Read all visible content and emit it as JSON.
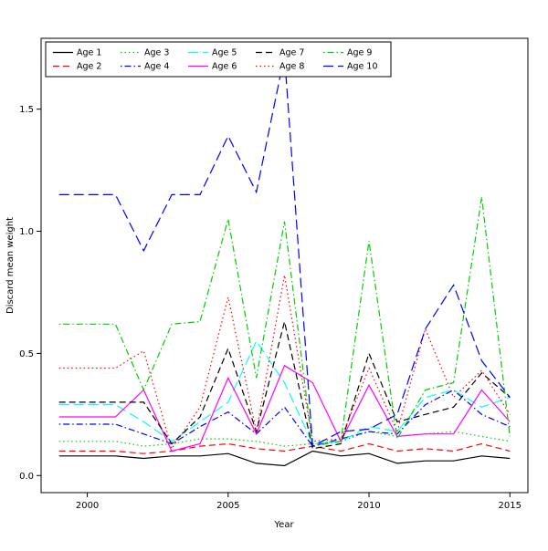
{
  "chart_data": {
    "type": "line",
    "title": "",
    "xlabel": "Year",
    "ylabel": "Discard mean weight",
    "x": [
      1999,
      2000,
      2001,
      2002,
      2003,
      2004,
      2005,
      2006,
      2007,
      2008,
      2009,
      2010,
      2011,
      2012,
      2013,
      2014,
      2015
    ],
    "x_ticks": [
      2000,
      2005,
      2010,
      2015
    ],
    "y_ticks": [
      "0.0",
      "0.5",
      "1.0",
      "1.5"
    ],
    "y_tick_values": [
      0.0,
      0.5,
      1.0,
      1.5
    ],
    "xlim": [
      1998.36,
      2015.64
    ],
    "ylim": [
      -0.07,
      1.79
    ],
    "grid": false,
    "legend_position": "top-left-inside",
    "legend_columns": 5,
    "series": [
      {
        "name": "Age 1",
        "color": "#000000",
        "linetype": "solid",
        "values": [
          0.08,
          0.08,
          0.08,
          0.07,
          0.08,
          0.08,
          0.09,
          0.05,
          0.04,
          0.1,
          0.08,
          0.09,
          0.05,
          0.06,
          0.06,
          0.08,
          0.07
        ]
      },
      {
        "name": "Age 2",
        "color": "#ff0000",
        "linetype": "dashed",
        "values": [
          0.1,
          0.1,
          0.1,
          0.09,
          0.1,
          0.12,
          0.13,
          0.11,
          0.1,
          0.12,
          0.1,
          0.13,
          0.1,
          0.11,
          0.1,
          0.13,
          0.1
        ]
      },
      {
        "name": "Age 3",
        "color": "#00cd00",
        "linetype": "dotted",
        "values": [
          0.14,
          0.14,
          0.14,
          0.12,
          0.13,
          0.15,
          0.15,
          0.14,
          0.12,
          0.13,
          0.14,
          0.18,
          0.16,
          0.17,
          0.18,
          0.16,
          0.14
        ]
      },
      {
        "name": "Age 4",
        "color": "#0000ff",
        "linetype": "dotdash",
        "values": [
          0.21,
          0.21,
          0.21,
          0.17,
          0.13,
          0.2,
          0.26,
          0.17,
          0.28,
          0.12,
          0.15,
          0.18,
          0.17,
          0.29,
          0.35,
          0.25,
          0.2
        ]
      },
      {
        "name": "Age 5",
        "color": "#00ffff",
        "linetype": "longdash",
        "values": [
          0.29,
          0.29,
          0.29,
          0.22,
          0.14,
          0.22,
          0.3,
          0.55,
          0.38,
          0.13,
          0.14,
          0.2,
          0.18,
          0.32,
          0.35,
          0.28,
          0.32
        ]
      },
      {
        "name": "Age 6",
        "color": "#ff00ff",
        "linetype": "solid",
        "values": [
          0.24,
          0.24,
          0.24,
          0.35,
          0.1,
          0.13,
          0.4,
          0.17,
          0.45,
          0.38,
          0.14,
          0.37,
          0.16,
          0.17,
          0.17,
          0.35,
          0.22
        ]
      },
      {
        "name": "Age 7",
        "color": "#000000",
        "linetype": "dashed",
        "values": [
          0.3,
          0.3,
          0.3,
          0.3,
          0.13,
          0.24,
          0.52,
          0.18,
          0.63,
          0.11,
          0.13,
          0.5,
          0.22,
          0.25,
          0.28,
          0.42,
          0.32
        ]
      },
      {
        "name": "Age 8",
        "color": "#ff0000",
        "linetype": "dotted",
        "values": [
          0.44,
          0.44,
          0.44,
          0.51,
          0.11,
          0.28,
          0.73,
          0.18,
          0.82,
          0.14,
          0.15,
          0.44,
          0.18,
          0.6,
          0.32,
          0.43,
          0.25
        ]
      },
      {
        "name": "Age 9",
        "color": "#00cd00",
        "linetype": "dotdash",
        "values": [
          0.62,
          0.62,
          0.62,
          0.35,
          0.62,
          0.63,
          1.05,
          0.4,
          1.04,
          0.12,
          0.14,
          0.96,
          0.15,
          0.35,
          0.38,
          1.14,
          0.16
        ]
      },
      {
        "name": "Age 10",
        "color": "#0000ff",
        "linetype": "longdash",
        "values": [
          1.15,
          1.15,
          1.15,
          0.92,
          1.15,
          1.15,
          1.39,
          1.16,
          1.72,
          0.12,
          0.18,
          0.19,
          0.25,
          0.6,
          0.78,
          0.47,
          0.32
        ]
      }
    ]
  }
}
